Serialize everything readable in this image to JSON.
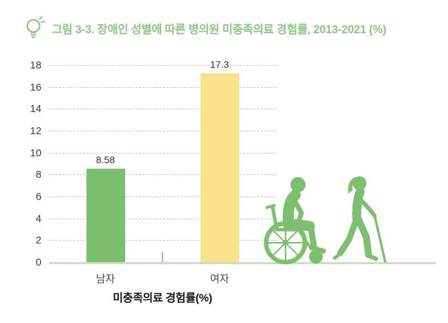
{
  "header": {
    "title": "그림 3-3. 장애인 성별에 따른 병의원 미충족의료 경험률, 2013-2021 (%)",
    "accent_color": "#8cc87f"
  },
  "chart_data": {
    "type": "bar",
    "title": "그림 3-3. 장애인 성별에 따른 병의원 미충족의료 경험률, 2013-2021 (%)",
    "categories": [
      "남자",
      "여자"
    ],
    "values": [
      8.58,
      17.3
    ],
    "value_labels": [
      "8.58",
      "17.3"
    ],
    "bar_colors": [
      "#7cc06f",
      "#f8e18a"
    ],
    "xlabel": "미충족의료 경험률(%)",
    "ylabel": "",
    "ylim": [
      0,
      18
    ],
    "ytick_step": 2,
    "grid": "dashed-horizontal",
    "legend": "none"
  },
  "decor": {
    "figures": [
      "wheelchair-person",
      "walking-person-with-cane"
    ],
    "figure_color": "#7cc06f"
  }
}
